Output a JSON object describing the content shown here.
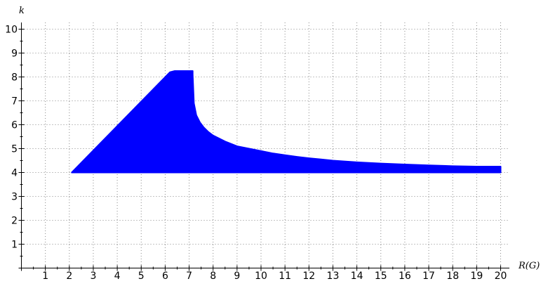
{
  "chart_data": {
    "type": "area",
    "title": "",
    "xlabel": "R(G)",
    "ylabel": "k",
    "xlim": [
      0,
      20
    ],
    "ylim": [
      0,
      10
    ],
    "x_ticks": [
      1,
      2,
      3,
      4,
      5,
      6,
      7,
      8,
      9,
      10,
      11,
      12,
      13,
      14,
      15,
      16,
      17,
      18,
      19,
      20
    ],
    "y_ticks": [
      1,
      2,
      3,
      4,
      5,
      6,
      7,
      8,
      9,
      10
    ],
    "grid": true,
    "fill_color": "#0000ff",
    "series": [
      {
        "lower": 4.0,
        "upper_boundary": [
          [
            2.1,
            4.0
          ],
          [
            6.2,
            8.2
          ],
          [
            6.4,
            8.25
          ],
          [
            7.0,
            8.25
          ],
          [
            7.15,
            8.25
          ],
          [
            7.15,
            8.1
          ],
          [
            7.2,
            6.9
          ],
          [
            7.3,
            6.4
          ],
          [
            7.45,
            6.1
          ],
          [
            7.6,
            5.9
          ],
          [
            7.8,
            5.7
          ],
          [
            8.0,
            5.55
          ],
          [
            8.5,
            5.3
          ],
          [
            9.0,
            5.1
          ],
          [
            9.5,
            5.0
          ],
          [
            10.0,
            4.9
          ],
          [
            10.5,
            4.8
          ],
          [
            11.0,
            4.73
          ],
          [
            11.5,
            4.66
          ],
          [
            12.0,
            4.6
          ],
          [
            12.5,
            4.55
          ],
          [
            13.0,
            4.5
          ],
          [
            14.0,
            4.43
          ],
          [
            15.0,
            4.38
          ],
          [
            16.0,
            4.34
          ],
          [
            17.0,
            4.3
          ],
          [
            18.0,
            4.27
          ],
          [
            19.0,
            4.25
          ],
          [
            20.0,
            4.25
          ]
        ]
      }
    ]
  }
}
